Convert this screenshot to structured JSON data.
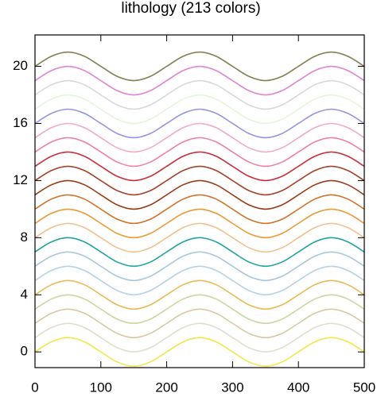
{
  "chart_data": {
    "type": "line",
    "title": "lithology (213 colors)",
    "x": [
      0,
      25,
      50,
      75,
      100,
      125,
      150,
      175,
      200,
      225,
      250,
      275,
      300,
      325,
      350,
      375,
      400,
      425,
      450,
      475,
      500
    ],
    "xlim": [
      0,
      500
    ],
    "xticks": [
      0,
      100,
      200,
      300,
      400,
      500
    ],
    "ylim": [
      -1.1,
      22.2
    ],
    "yticks": [
      0,
      4,
      8,
      12,
      16,
      20
    ],
    "series": [
      {
        "color": "#f2e64b",
        "values": [
          0,
          0.707,
          1,
          0.707,
          0,
          -0.707,
          -1,
          -0.707,
          0,
          0.707,
          1,
          0.707,
          0,
          -0.707,
          -1,
          -0.707,
          0,
          0.707,
          1,
          0.707,
          0
        ]
      },
      {
        "color": "#e2dcd0",
        "values": [
          1,
          1.707,
          2,
          1.707,
          1,
          0.293,
          0,
          0.293,
          1,
          1.707,
          2,
          1.707,
          1,
          0.293,
          0,
          0.293,
          1,
          1.707,
          2,
          1.707,
          1
        ]
      },
      {
        "color": "#d9c9a2",
        "values": [
          2,
          2.707,
          3,
          2.707,
          2,
          1.293,
          1,
          1.293,
          2,
          2.707,
          3,
          2.707,
          2,
          1.293,
          1,
          1.293,
          2,
          2.707,
          3,
          2.707,
          2
        ]
      },
      {
        "color": "#c8d8a0",
        "values": [
          3,
          3.707,
          4,
          3.707,
          3,
          2.293,
          2,
          2.293,
          3,
          3.707,
          4,
          3.707,
          3,
          2.293,
          2,
          2.293,
          3,
          3.707,
          4,
          3.707,
          3
        ]
      },
      {
        "color": "#e8bc52",
        "values": [
          4,
          4.707,
          5,
          4.707,
          4,
          3.293,
          3,
          3.293,
          4,
          4.707,
          5,
          4.707,
          4,
          3.293,
          3,
          3.293,
          4,
          4.707,
          5,
          4.707,
          4
        ]
      },
      {
        "color": "#b6d2e6",
        "values": [
          5,
          5.707,
          6,
          5.707,
          5,
          4.293,
          4,
          4.293,
          5,
          5.707,
          6,
          5.707,
          5,
          4.293,
          4,
          4.293,
          5,
          5.707,
          6,
          5.707,
          5
        ]
      },
      {
        "color": "#a8c8e0",
        "values": [
          6,
          6.707,
          7,
          6.707,
          6,
          5.293,
          5,
          5.293,
          6,
          6.707,
          7,
          6.707,
          6,
          5.293,
          5,
          5.293,
          6,
          6.707,
          7,
          6.707,
          6
        ]
      },
      {
        "color": "#1fa3a0",
        "values": [
          7,
          7.707,
          8,
          7.707,
          7,
          6.293,
          6,
          6.293,
          7,
          7.707,
          8,
          7.707,
          7,
          6.293,
          6,
          6.293,
          7,
          7.707,
          8,
          7.707,
          7
        ]
      },
      {
        "color": "#f2c08e",
        "values": [
          8,
          8.707,
          9,
          8.707,
          8,
          7.293,
          7,
          7.293,
          8,
          8.707,
          9,
          8.707,
          8,
          7.293,
          7,
          7.293,
          8,
          8.707,
          9,
          8.707,
          8
        ]
      },
      {
        "color": "#ec9a34",
        "values": [
          9,
          9.707,
          10,
          9.707,
          9,
          8.293,
          8,
          8.293,
          9,
          9.707,
          10,
          9.707,
          9,
          8.293,
          8,
          8.293,
          9,
          9.707,
          10,
          9.707,
          9
        ]
      },
      {
        "color": "#d2722a",
        "values": [
          10,
          10.707,
          11,
          10.707,
          10,
          9.293,
          9,
          9.293,
          10,
          10.707,
          11,
          10.707,
          10,
          9.293,
          9,
          9.293,
          10,
          10.707,
          11,
          10.707,
          10
        ]
      },
      {
        "color": "#9a3a14",
        "values": [
          11,
          11.707,
          12,
          11.707,
          11,
          10.293,
          10,
          10.293,
          11,
          11.707,
          12,
          11.707,
          11,
          10.293,
          10,
          10.293,
          11,
          11.707,
          12,
          11.707,
          11
        ]
      },
      {
        "color": "#a4422a",
        "values": [
          12,
          12.707,
          13,
          12.707,
          12,
          11.293,
          11,
          11.293,
          12,
          12.707,
          13,
          12.707,
          12,
          11.293,
          11,
          11.293,
          12,
          12.707,
          13,
          12.707,
          12
        ]
      },
      {
        "color": "#c8303a",
        "values": [
          13,
          13.707,
          14,
          13.707,
          13,
          12.293,
          12,
          12.293,
          13,
          13.707,
          14,
          13.707,
          13,
          12.293,
          12,
          12.293,
          13,
          13.707,
          14,
          13.707,
          13
        ]
      },
      {
        "color": "#f080a6",
        "values": [
          14,
          14.707,
          15,
          14.707,
          14,
          13.293,
          13,
          13.293,
          14,
          14.707,
          15,
          14.707,
          14,
          13.293,
          13,
          13.293,
          14,
          14.707,
          15,
          14.707,
          14
        ]
      },
      {
        "color": "#f4a8c8",
        "values": [
          15,
          15.707,
          16,
          15.707,
          15,
          14.293,
          14,
          14.293,
          15,
          15.707,
          16,
          15.707,
          15,
          14.293,
          14,
          14.293,
          15,
          15.707,
          16,
          15.707,
          15
        ]
      },
      {
        "color": "#9494e2",
        "values": [
          16,
          16.707,
          17,
          16.707,
          16,
          15.293,
          15,
          15.293,
          16,
          16.707,
          17,
          16.707,
          16,
          15.293,
          15,
          15.293,
          16,
          16.707,
          17,
          16.707,
          16
        ]
      },
      {
        "color": "#e6f4dc",
        "values": [
          17,
          17.707,
          18,
          17.707,
          17,
          16.293,
          16,
          16.293,
          17,
          17.707,
          18,
          17.707,
          17,
          16.293,
          16,
          16.293,
          17,
          17.707,
          18,
          17.707,
          17
        ]
      },
      {
        "color": "#d8d8d8",
        "values": [
          18,
          18.707,
          19,
          18.707,
          18,
          17.293,
          17,
          17.293,
          18,
          18.707,
          19,
          18.707,
          18,
          17.293,
          17,
          17.293,
          18,
          18.707,
          19,
          18.707,
          18
        ]
      },
      {
        "color": "#e084d4",
        "values": [
          19,
          19.707,
          20,
          19.707,
          19,
          18.293,
          18,
          18.293,
          19,
          19.707,
          20,
          19.707,
          19,
          18.293,
          18,
          18.293,
          19,
          19.707,
          20,
          19.707,
          19
        ]
      },
      {
        "color": "#848052",
        "values": [
          20,
          20.707,
          21,
          20.707,
          20,
          19.293,
          19,
          19.293,
          20,
          20.707,
          21,
          20.707,
          20,
          19.293,
          19,
          19.293,
          20,
          20.707,
          21,
          20.707,
          20
        ]
      }
    ]
  }
}
